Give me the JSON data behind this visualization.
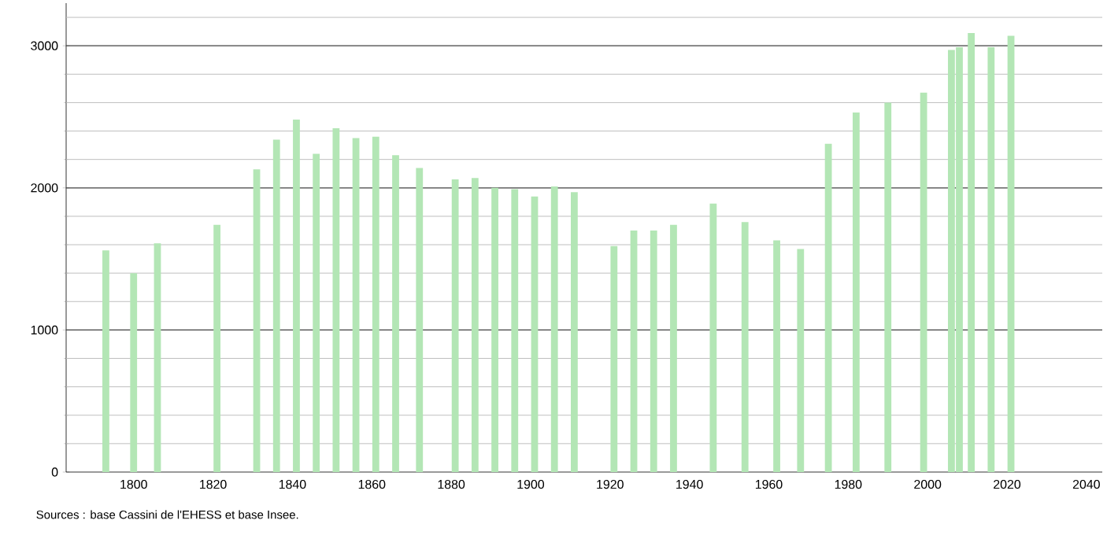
{
  "chart_data": {
    "type": "bar",
    "color": "#b3e6b5",
    "x": [
      1793,
      1800,
      1806,
      1821,
      1831,
      1836,
      1841,
      1846,
      1851,
      1856,
      1861,
      1866,
      1872,
      1881,
      1886,
      1891,
      1896,
      1901,
      1906,
      1911,
      1921,
      1926,
      1931,
      1936,
      1946,
      1954,
      1962,
      1968,
      1975,
      1982,
      1990,
      1999,
      2006,
      2008,
      2011,
      2016,
      2021
    ],
    "values": [
      1560,
      1400,
      1610,
      1740,
      2130,
      2340,
      2480,
      2240,
      2420,
      2350,
      2360,
      2230,
      2140,
      2060,
      2070,
      2000,
      1990,
      1940,
      2010,
      1970,
      1590,
      1700,
      1700,
      1740,
      1890,
      1760,
      1630,
      1570,
      2310,
      2530,
      2600,
      2670,
      2970,
      2990,
      3090,
      2990,
      3070
    ],
    "xlim": [
      1783,
      2044
    ],
    "xticks": [
      1800,
      1820,
      1840,
      1860,
      1880,
      1900,
      1920,
      1940,
      1960,
      1980,
      2000,
      2020,
      2040
    ],
    "ylim": [
      0,
      3300
    ],
    "yticks": [
      0,
      1000,
      2000,
      3000
    ],
    "grid": "y",
    "annotations": [
      "Sources : base Cassini de l'EHESS et base Insee."
    ]
  }
}
